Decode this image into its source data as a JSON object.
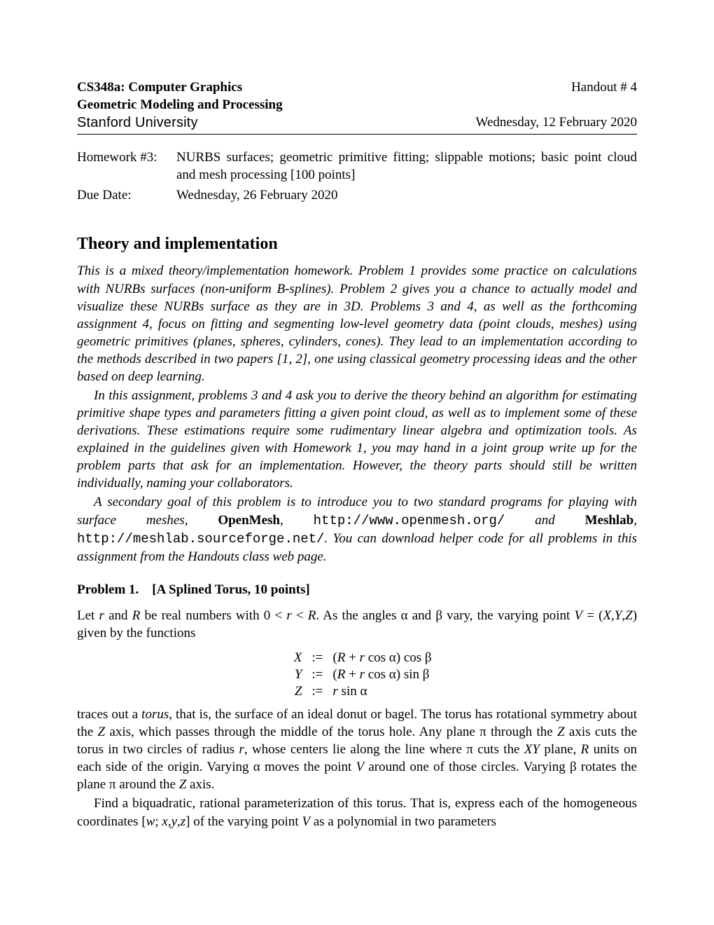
{
  "header": {
    "course": "CS348a: Computer Graphics",
    "handout": "Handout # 4",
    "subtitle": "Geometric Modeling and Processing",
    "institution": "Stanford University",
    "date": "Wednesday, 12 February 2020"
  },
  "hw": {
    "label1": "Homework #3:",
    "content1": "NURBS surfaces; geometric primitive fitting; slippable motions; basic point cloud and mesh processing [100 points]",
    "label2": "Due Date:",
    "content2": "Wednesday, 26 February 2020"
  },
  "section_title": "Theory and implementation",
  "intro": {
    "p1": "This is a mixed theory/implementation homework. Problem 1 provides some practice on calculations with NURBs surfaces (non-uniform B-splines). Problem 2 gives you a chance to actually model and visualize these NURBs surface as they are in 3D. Problems 3 and 4, as well as the forthcoming assignment 4, focus on fitting and segmenting low-level geometry data (point clouds, meshes) using geometric primitives (planes, spheres, cylinders, cones). They lead to an implementation according to the methods described in two papers [1, 2], one using classical geometry processing ideas and the other based on deep learning.",
    "p2": "In this assignment, problems 3 and 4 ask you to derive the theory behind an algorithm for estimating primitive shape types and parameters fitting a given point cloud, as well as to implement some of these derivations. These estimations require some rudimentary linear algebra and optimization tools. As explained in the guidelines given with Homework 1, you may hand in a joint group write up for the problem parts that ask for an implementation. However, the theory parts should still be written individually, naming your collaborators.",
    "p3a": "A secondary goal of this problem is to introduce you to two standard programs for playing with surface meshes, ",
    "openmesh_bold": "OpenMesh",
    "comma1": ", ",
    "openmesh_url": "http://www.openmesh.org/",
    "and": " and ",
    "meshlab_bold": "Meshlab",
    "comma2": ", ",
    "meshlab_url": "http://meshlab.sourceforge.net/",
    "p3b": ". You can download helper code for all problems in this assignment from the Handouts class web page."
  },
  "problem1": {
    "title": "Problem 1. [A Splined Torus, 10 points]",
    "p1a": "Let ",
    "r": "r",
    "p1b": " and ",
    "R": "R",
    "p1c": " be real numbers with 0 < ",
    "p1d": " < ",
    "p1e": ". As the angles α and β vary, the varying point ",
    "V": "V",
    "eq": " = (",
    "X": "X",
    "Y": "Y",
    "Z": "Z",
    "p1f": ") given by the functions",
    "p2a": "traces out a ",
    "torus": "torus",
    "p2b": ", that is, the surface of an ideal donut or bagel. The torus has rotational symmetry about the ",
    "p2c": " axis, which passes through the middle of the torus hole. Any plane π through the ",
    "p2d": " axis cuts the torus in two circles of radius ",
    "p2e": ", whose centers lie along the line where π cuts the ",
    "XY": "XY",
    "p2f": " plane, ",
    "p2g": " units on each side of the origin. Varying α moves the point ",
    "p2h": " around one of those circles. Varying β rotates the plane π around the ",
    "p2i": " axis.",
    "p3a": "Find a biquadratic, rational parameterization of this torus. That is, express each of the homogeneous coordinates [",
    "w": "w",
    "sep": "; ",
    "x": "x",
    "y": "y",
    "z": "z",
    "p3b": "] of the varying point ",
    "p3c": " as a polynomial in two parameters"
  },
  "math": {
    "assign": ":=",
    "row1_lhs": "X",
    "row1_rhs": "(R + r cos α) cos β",
    "row2_lhs": "Y",
    "row2_rhs": "(R + r cos α) sin β",
    "row3_lhs": "Z",
    "row3_rhs": "r sin α"
  }
}
